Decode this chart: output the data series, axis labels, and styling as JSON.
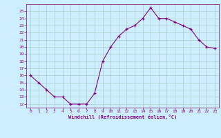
{
  "x": [
    0,
    1,
    2,
    3,
    4,
    5,
    6,
    7,
    8,
    9,
    10,
    11,
    12,
    13,
    14,
    15,
    16,
    17,
    18,
    19,
    20,
    21,
    22,
    23
  ],
  "y": [
    16.0,
    15.0,
    14.0,
    13.0,
    13.0,
    12.0,
    12.0,
    12.0,
    13.5,
    18.0,
    20.0,
    21.5,
    22.5,
    23.0,
    24.0,
    25.5,
    24.0,
    24.0,
    23.5,
    23.0,
    22.5,
    21.0,
    20.0,
    19.8
  ],
  "xlabel": "Windchill (Refroidissement éolien,°C)",
  "xlim": [
    -0.5,
    23.5
  ],
  "ylim": [
    11.5,
    26.0
  ],
  "yticks": [
    12,
    13,
    14,
    15,
    16,
    17,
    18,
    19,
    20,
    21,
    22,
    23,
    24,
    25
  ],
  "xticks": [
    0,
    1,
    2,
    3,
    4,
    5,
    6,
    7,
    8,
    9,
    10,
    11,
    12,
    13,
    14,
    15,
    16,
    17,
    18,
    19,
    20,
    21,
    22,
    23
  ],
  "line_color": "#800080",
  "marker_color": "#800080",
  "bg_color": "#cceeff",
  "grid_color": "#aacccc",
  "axes_label_color": "#800080",
  "tick_color": "#800080",
  "font_family": "monospace"
}
